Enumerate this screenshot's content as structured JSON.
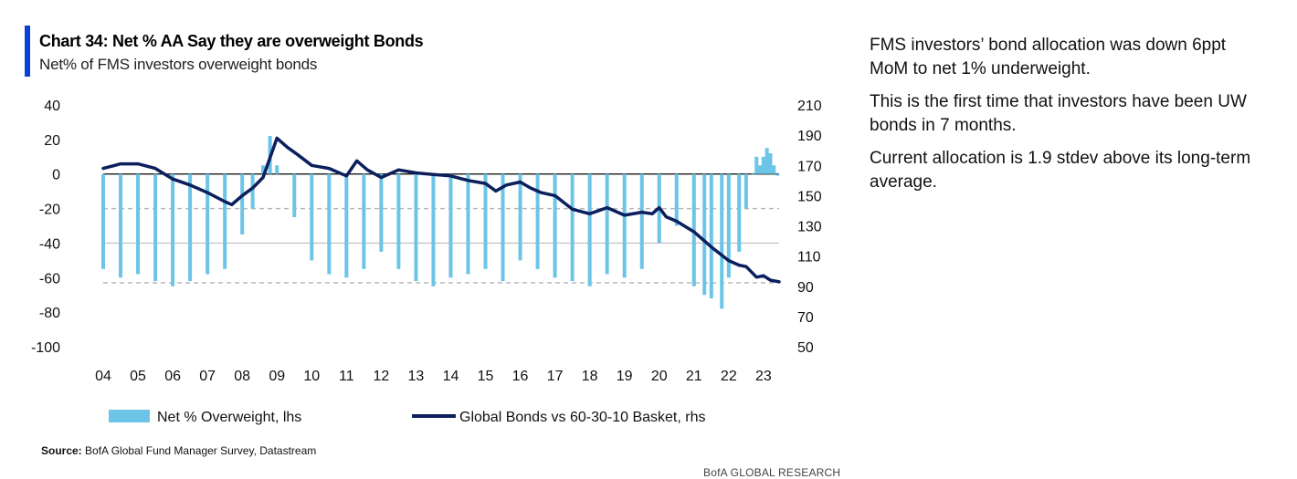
{
  "header": {
    "title": "Chart 34: Net % AA Say they are overweight Bonds",
    "subtitle": "Net% of FMS investors overweight bonds"
  },
  "commentary": [
    "FMS investors’ bond allocation was down 6ppt MoM to net 1% underweight.",
    "This is the first time that investors have been UW bonds in 7 months.",
    "Current allocation is 1.9 stdev above its long-term average."
  ],
  "footer": {
    "source_label": "Source:",
    "source_text": "BofA Global Fund Manager Survey, Datastream",
    "brand": "BofA GLOBAL RESEARCH"
  },
  "colors": {
    "bars": "#6cc4e6",
    "line": "#0b1f5c",
    "accent": "#0a3fd8",
    "dashed": "#b8b8b8"
  },
  "chart_data": {
    "type": "bar",
    "title": "Chart 34: Net % AA Say they are overweight Bonds",
    "subtitle": "Net% of FMS investors overweight bonds",
    "xlabel": "",
    "ylabel": "",
    "x_ticks": [
      "04",
      "05",
      "06",
      "07",
      "08",
      "09",
      "10",
      "11",
      "12",
      "13",
      "14",
      "15",
      "16",
      "17",
      "18",
      "19",
      "20",
      "21",
      "22",
      "23"
    ],
    "x_range": [
      2004.0,
      2023.45
    ],
    "y_left": {
      "ticks": [
        40,
        20,
        0,
        -20,
        -40,
        -60,
        -80,
        -100
      ],
      "range": [
        -100,
        40
      ]
    },
    "y_right": {
      "ticks": [
        210,
        190,
        170,
        150,
        130,
        110,
        90,
        70,
        50
      ],
      "range": [
        50,
        210
      ]
    },
    "reference_lines": [
      {
        "y": 0,
        "style": "solid"
      },
      {
        "y": -40,
        "style": "solid"
      },
      {
        "y": -20,
        "style": "dashed"
      },
      {
        "y": -63,
        "style": "dashed"
      }
    ],
    "legend": [
      "Net % Overweight, lhs",
      "Global Bonds vs 60-30-10 Basket, rhs"
    ],
    "legend_position": "bottom",
    "series": [
      {
        "name": "Net % Overweight, lhs",
        "type": "bar",
        "axis": "left",
        "x": [
          2004.0,
          2004.5,
          2005.0,
          2005.5,
          2006.0,
          2006.5,
          2007.0,
          2007.5,
          2008.0,
          2008.3,
          2008.6,
          2008.8,
          2009.0,
          2009.5,
          2010.0,
          2010.5,
          2011.0,
          2011.5,
          2012.0,
          2012.5,
          2013.0,
          2013.5,
          2014.0,
          2014.5,
          2015.0,
          2015.5,
          2016.0,
          2016.5,
          2017.0,
          2017.5,
          2018.0,
          2018.5,
          2019.0,
          2019.5,
          2020.0,
          2020.5,
          2021.0,
          2021.3,
          2021.5,
          2021.8,
          2022.0,
          2022.3,
          2022.5,
          2022.7,
          2022.8,
          2022.9,
          2023.0,
          2023.1,
          2023.2,
          2023.3,
          2023.4
        ],
        "values": [
          -55,
          -60,
          -58,
          -62,
          -65,
          -62,
          -58,
          -55,
          -35,
          -20,
          5,
          22,
          5,
          -25,
          -50,
          -58,
          -60,
          -55,
          -45,
          -55,
          -62,
          -65,
          -60,
          -58,
          -55,
          -62,
          -50,
          -55,
          -60,
          -62,
          -65,
          -58,
          -60,
          -55,
          -40,
          -30,
          -65,
          -70,
          -72,
          -78,
          -60,
          -45,
          -20,
          0,
          10,
          5,
          10,
          15,
          12,
          5,
          -1
        ]
      },
      {
        "name": "Global Bonds vs 60-30-10 Basket, rhs",
        "type": "line",
        "axis": "right",
        "x": [
          2004.0,
          2004.5,
          2005.0,
          2005.5,
          2006.0,
          2006.5,
          2007.0,
          2007.5,
          2007.7,
          2008.0,
          2008.3,
          2008.6,
          2008.8,
          2009.0,
          2009.3,
          2009.6,
          2010.0,
          2010.5,
          2011.0,
          2011.3,
          2011.6,
          2012.0,
          2012.5,
          2013.0,
          2013.5,
          2014.0,
          2014.5,
          2015.0,
          2015.3,
          2015.6,
          2016.0,
          2016.3,
          2016.6,
          2017.0,
          2017.5,
          2018.0,
          2018.5,
          2019.0,
          2019.5,
          2019.8,
          2020.0,
          2020.2,
          2020.5,
          2021.0,
          2021.5,
          2022.0,
          2022.3,
          2022.5,
          2022.8,
          2023.0,
          2023.2,
          2023.45
        ],
        "values": [
          168,
          171,
          171,
          168,
          161,
          157,
          152,
          146,
          144,
          150,
          155,
          162,
          175,
          188,
          182,
          177,
          170,
          168,
          163,
          173,
          167,
          162,
          167,
          165,
          164,
          163,
          160,
          158,
          153,
          157,
          159,
          155,
          152,
          150,
          141,
          138,
          142,
          137,
          139,
          138,
          142,
          136,
          133,
          126,
          116,
          107,
          104,
          103,
          96,
          97,
          94,
          93
        ]
      }
    ]
  }
}
